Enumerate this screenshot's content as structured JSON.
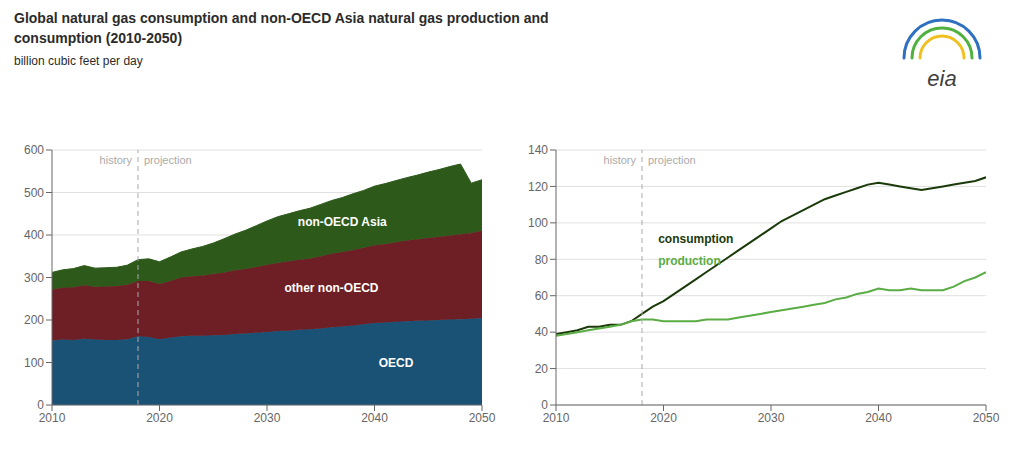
{
  "title": [
    "Global natural gas consumption and non-OECD Asia natural gas production and",
    "consumption (2010-2050)"
  ],
  "subtitle": "billion cubic feet per day",
  "logo_text": "eia",
  "chart_data": [
    {
      "type": "area",
      "stacked": true,
      "grid": true,
      "x": [
        2010,
        2011,
        2012,
        2013,
        2014,
        2015,
        2016,
        2017,
        2018,
        2019,
        2020,
        2021,
        2022,
        2023,
        2024,
        2025,
        2026,
        2027,
        2028,
        2029,
        2030,
        2031,
        2032,
        2033,
        2034,
        2035,
        2036,
        2037,
        2038,
        2039,
        2040,
        2041,
        2042,
        2043,
        2044,
        2045,
        2046,
        2047,
        2048,
        2049,
        2050
      ],
      "series": [
        {
          "name": "OECD",
          "color": "#1a5276",
          "values": [
            152,
            154,
            153,
            156,
            154,
            153,
            153,
            155,
            162,
            160,
            155,
            158,
            162,
            163,
            163,
            164,
            165,
            167,
            168,
            170,
            172,
            174,
            175,
            177,
            178,
            180,
            183,
            185,
            187,
            190,
            193,
            194,
            196,
            197,
            198,
            199,
            200,
            201,
            202,
            203,
            205
          ]
        },
        {
          "name": "other non-OECD",
          "color": "#6e1f25",
          "values": [
            120,
            122,
            124,
            126,
            124,
            126,
            127,
            128,
            130,
            132,
            130,
            134,
            138,
            140,
            142,
            144,
            147,
            150,
            152,
            155,
            158,
            160,
            163,
            165,
            167,
            170,
            173,
            175,
            178,
            180,
            183,
            185,
            187,
            190,
            192,
            194,
            196,
            198,
            200,
            202,
            205
          ]
        },
        {
          "name": "non-OECD Asia",
          "color": "#2d5a1b",
          "values": [
            40,
            42,
            44,
            46,
            44,
            44,
            44,
            46,
            50,
            52,
            52,
            56,
            60,
            64,
            68,
            73,
            79,
            85,
            91,
            97,
            103,
            109,
            112,
            115,
            118,
            122,
            125,
            128,
            132,
            135,
            139,
            142,
            145,
            148,
            151,
            155,
            158,
            162,
            165,
            117,
            120
          ]
        }
      ],
      "xlim": [
        2010,
        2050
      ],
      "xticks": [
        2010,
        2020,
        2030,
        2040,
        2050
      ],
      "ylim": [
        0,
        600
      ],
      "yticks": [
        0,
        100,
        200,
        300,
        400,
        500,
        600
      ],
      "reference_lines": [
        {
          "x": 2018,
          "line_style": "dashed",
          "color": "#aaaaaa",
          "labels": [
            "history",
            "projection"
          ]
        }
      ],
      "annotations": [
        {
          "text": "non-OECD Asia",
          "x": 2037,
          "y": 430
        },
        {
          "text": "other non-OECD",
          "x": 2036,
          "y": 275
        },
        {
          "text": "OECD",
          "x": 2042,
          "y": 100
        }
      ]
    },
    {
      "type": "line",
      "grid": true,
      "x": [
        2010,
        2011,
        2012,
        2013,
        2014,
        2015,
        2016,
        2017,
        2018,
        2019,
        2020,
        2021,
        2022,
        2023,
        2024,
        2025,
        2026,
        2027,
        2028,
        2029,
        2030,
        2031,
        2032,
        2033,
        2034,
        2035,
        2036,
        2037,
        2038,
        2039,
        2040,
        2041,
        2042,
        2043,
        2044,
        2045,
        2046,
        2047,
        2048,
        2049,
        2050
      ],
      "series": [
        {
          "name": "consumption",
          "color": "#1a3a0a",
          "values": [
            39,
            40,
            41,
            43,
            43,
            44,
            44,
            46,
            50,
            54,
            57,
            61,
            65,
            69,
            73,
            77,
            81,
            85,
            89,
            93,
            97,
            101,
            104,
            107,
            110,
            113,
            115,
            117,
            119,
            121,
            122,
            121,
            120,
            119,
            118,
            119,
            120,
            121,
            122,
            123,
            125
          ]
        },
        {
          "name": "production",
          "color": "#5aac44",
          "values": [
            38,
            39,
            40,
            41,
            42,
            43,
            44,
            46,
            47,
            47,
            46,
            46,
            46,
            46,
            47,
            47,
            47,
            48,
            49,
            50,
            51,
            52,
            53,
            54,
            55,
            56,
            58,
            59,
            61,
            62,
            64,
            63,
            63,
            64,
            63,
            63,
            63,
            65,
            68,
            70,
            73
          ]
        }
      ],
      "xlim": [
        2010,
        2050
      ],
      "xticks": [
        2010,
        2020,
        2030,
        2040,
        2050
      ],
      "ylim": [
        0,
        140
      ],
      "yticks": [
        0,
        20,
        40,
        60,
        80,
        100,
        120,
        140
      ],
      "reference_lines": [
        {
          "x": 2018,
          "line_style": "dashed",
          "color": "#aaaaaa",
          "labels": [
            "history",
            "projection"
          ]
        }
      ],
      "annotations": [
        {
          "text": "consumption",
          "x": 2019.5,
          "y": 91
        },
        {
          "text": "production",
          "x": 2019.5,
          "y": 79
        }
      ]
    }
  ]
}
